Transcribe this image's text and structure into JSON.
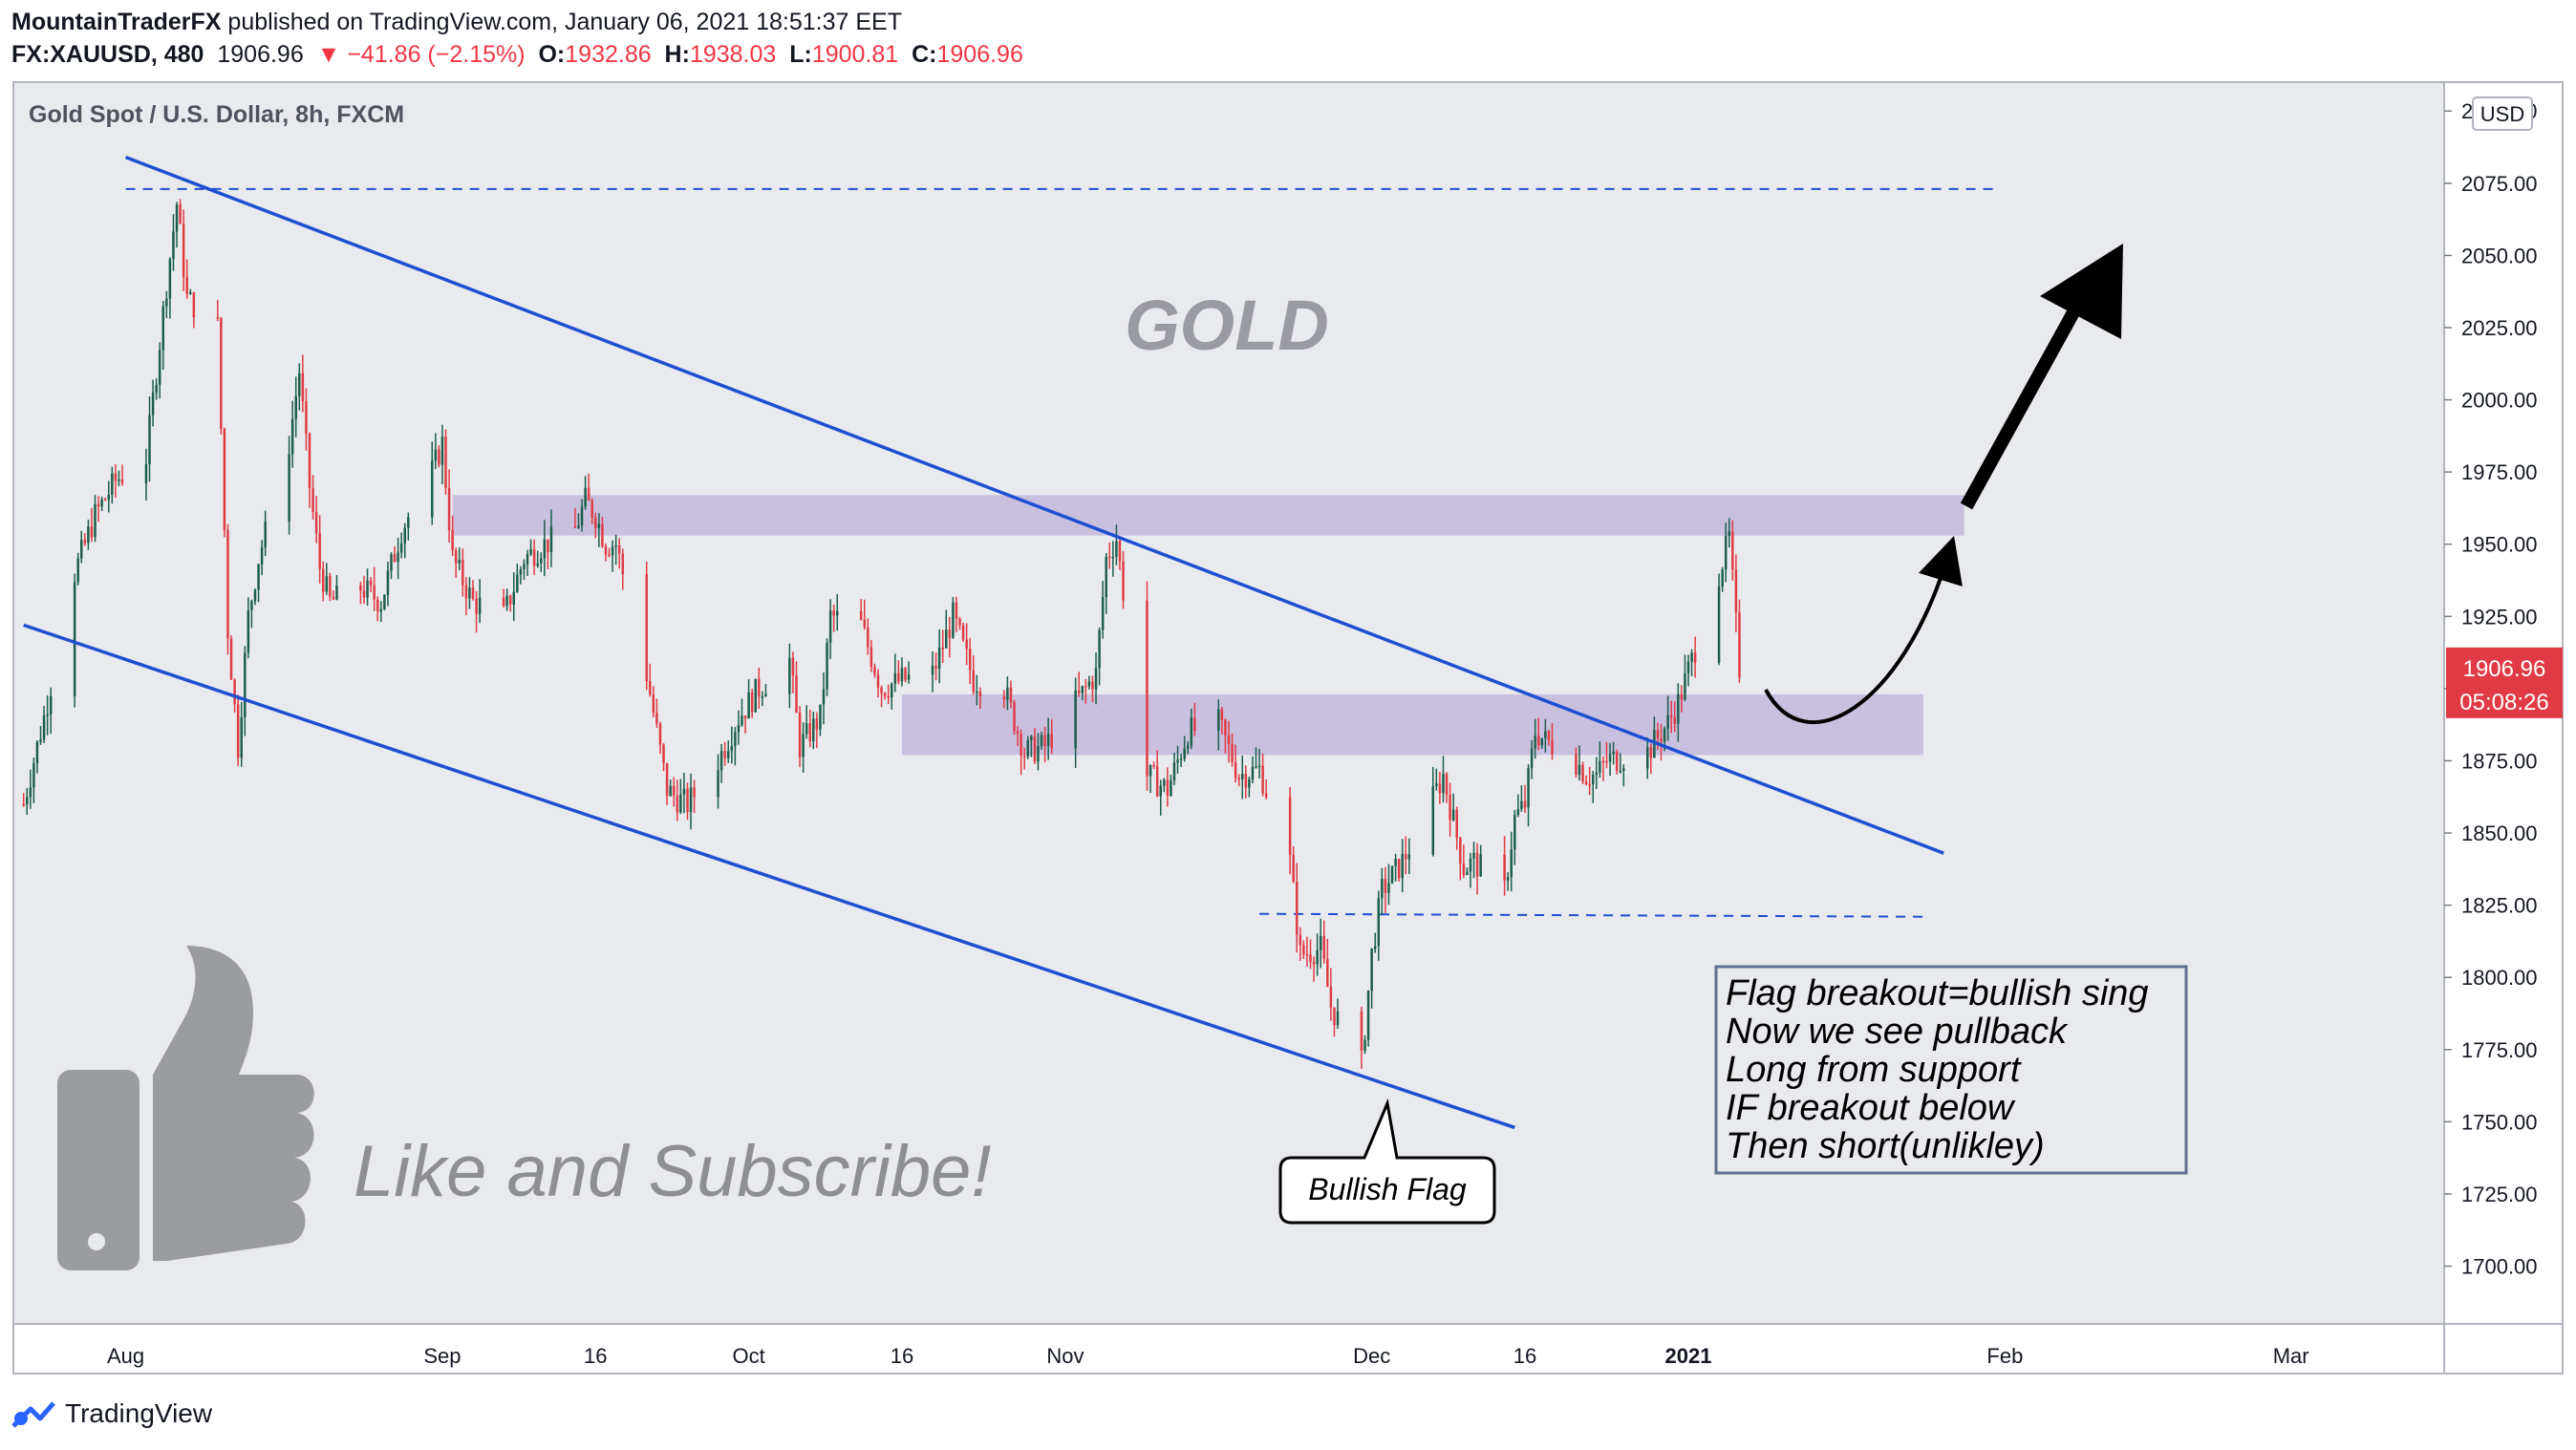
{
  "header": {
    "author": "MountainTraderFX",
    "published_text": "published on TradingView.com, January 06, 2021 18:51:37 EET"
  },
  "quote": {
    "symbol": "FX:XAUUSD, 480",
    "last": "1906.96",
    "change": "▼ −41.86 (−2.15%)",
    "o_label": "O:",
    "o": "1932.86",
    "h_label": "H:",
    "h": "1938.03",
    "l_label": "L:",
    "l": "1900.81",
    "c_label": "C:",
    "c": "1906.96"
  },
  "footer": {
    "brand": "TradingView"
  },
  "colors": {
    "up": "#1b5e4a",
    "down": "#e03b44",
    "channel": "#1f4fd1",
    "zone": "#b4a3d6",
    "background": "#e9eaee"
  },
  "chart_data": {
    "type": "candlestick",
    "title": "Gold Spot / U.S. Dollar, 8h, FXCM",
    "watermark": "GOLD",
    "currency": "USD",
    "ylim": [
      1680,
      2110
    ],
    "y_ticks": [
      "2100.00",
      "2075.00",
      "2050.00",
      "2025.00",
      "2000.00",
      "1975.00",
      "1950.00",
      "1925.00",
      "1900.00",
      "1875.00",
      "1850.00",
      "1825.00",
      "1800.00",
      "1775.00",
      "1750.00",
      "1725.00",
      "1700.00"
    ],
    "x_ticks": [
      {
        "label": "Aug",
        "date": "2020-08-01"
      },
      {
        "label": "Sep",
        "date": "2020-09-01"
      },
      {
        "label": "16",
        "date": "2020-09-16"
      },
      {
        "label": "Oct",
        "date": "2020-10-01"
      },
      {
        "label": "16",
        "date": "2020-10-16"
      },
      {
        "label": "Nov",
        "date": "2020-11-01"
      },
      {
        "label": "Dec",
        "date": "2020-12-01"
      },
      {
        "label": "16",
        "date": "2020-12-16"
      },
      {
        "label": "2021",
        "date": "2021-01-01"
      },
      {
        "label": "Feb",
        "date": "2021-02-01"
      },
      {
        "label": "Mar",
        "date": "2021-03-01"
      }
    ],
    "price_path": [
      [
        "2020-07-22",
        1860
      ],
      [
        "2020-07-24",
        1890
      ],
      [
        "2020-07-27",
        1940
      ],
      [
        "2020-07-29",
        1960
      ],
      [
        "2020-07-31",
        1972
      ],
      [
        "2020-08-03",
        1980
      ],
      [
        "2020-08-05",
        2040
      ],
      [
        "2020-08-06",
        2068
      ],
      [
        "2020-08-07",
        2035
      ],
      [
        "2020-08-10",
        2025
      ],
      [
        "2020-08-11",
        1920
      ],
      [
        "2020-08-12",
        1880
      ],
      [
        "2020-08-13",
        1925
      ],
      [
        "2020-08-14",
        1945
      ],
      [
        "2020-08-17",
        1985
      ],
      [
        "2020-08-18",
        2010
      ],
      [
        "2020-08-19",
        1970
      ],
      [
        "2020-08-20",
        1942
      ],
      [
        "2020-08-21",
        1930
      ],
      [
        "2020-08-24",
        1935
      ],
      [
        "2020-08-26",
        1930
      ],
      [
        "2020-08-28",
        1955
      ],
      [
        "2020-08-31",
        1975
      ],
      [
        "2020-09-01",
        1985
      ],
      [
        "2020-09-02",
        1945
      ],
      [
        "2020-09-04",
        1930
      ],
      [
        "2020-09-07",
        1925
      ],
      [
        "2020-09-09",
        1945
      ],
      [
        "2020-09-11",
        1950
      ],
      [
        "2020-09-14",
        1955
      ],
      [
        "2020-09-15",
        1965
      ],
      [
        "2020-09-16",
        1960
      ],
      [
        "2020-09-17",
        1950
      ],
      [
        "2020-09-18",
        1950
      ],
      [
        "2020-09-21",
        1905
      ],
      [
        "2020-09-23",
        1865
      ],
      [
        "2020-09-24",
        1862
      ],
      [
        "2020-09-25",
        1860
      ],
      [
        "2020-09-28",
        1875
      ],
      [
        "2020-09-30",
        1890
      ],
      [
        "2020-10-02",
        1900
      ],
      [
        "2020-10-05",
        1910
      ],
      [
        "2020-10-06",
        1880
      ],
      [
        "2020-10-08",
        1890
      ],
      [
        "2020-10-09",
        1925
      ],
      [
        "2020-10-12",
        1922
      ],
      [
        "2020-10-14",
        1900
      ],
      [
        "2020-10-16",
        1903
      ],
      [
        "2020-10-19",
        1905
      ],
      [
        "2020-10-21",
        1925
      ],
      [
        "2020-10-23",
        1903
      ],
      [
        "2020-10-26",
        1900
      ],
      [
        "2020-10-28",
        1878
      ],
      [
        "2020-10-30",
        1880
      ],
      [
        "2020-11-02",
        1895
      ],
      [
        "2020-11-04",
        1905
      ],
      [
        "2020-11-05",
        1945
      ],
      [
        "2020-11-06",
        1952
      ],
      [
        "2020-11-09",
        1870
      ],
      [
        "2020-11-11",
        1865
      ],
      [
        "2020-11-13",
        1885
      ],
      [
        "2020-11-16",
        1888
      ],
      [
        "2020-11-18",
        1870
      ],
      [
        "2020-11-20",
        1872
      ],
      [
        "2020-11-23",
        1840
      ],
      [
        "2020-11-24",
        1808
      ],
      [
        "2020-11-26",
        1810
      ],
      [
        "2020-11-27",
        1790
      ],
      [
        "2020-11-30",
        1770
      ],
      [
        "2020-12-01",
        1808
      ],
      [
        "2020-12-02",
        1830
      ],
      [
        "2020-12-04",
        1840
      ],
      [
        "2020-12-07",
        1862
      ],
      [
        "2020-12-08",
        1870
      ],
      [
        "2020-12-10",
        1838
      ],
      [
        "2020-12-11",
        1840
      ],
      [
        "2020-12-14",
        1830
      ],
      [
        "2020-12-15",
        1855
      ],
      [
        "2020-12-16",
        1860
      ],
      [
        "2020-12-17",
        1885
      ],
      [
        "2020-12-18",
        1882
      ],
      [
        "2020-12-21",
        1875
      ],
      [
        "2020-12-22",
        1870
      ],
      [
        "2020-12-23",
        1870
      ],
      [
        "2020-12-24",
        1875
      ],
      [
        "2020-12-28",
        1878
      ],
      [
        "2020-12-30",
        1888
      ],
      [
        "2020-12-31",
        1895
      ],
      [
        "2021-01-04",
        1940
      ],
      [
        "2021-01-05",
        1952
      ],
      [
        "2021-01-06",
        1906.96
      ]
    ],
    "last_price": "1906.96",
    "countdown": "05:08:26",
    "resistance_line": 2073,
    "support_line": 1822,
    "zones": [
      {
        "from": "2020-09-02",
        "to": "2021-01-28",
        "low": 1953,
        "high": 1967
      },
      {
        "from": "2020-10-16",
        "to": "2021-01-24",
        "low": 1877,
        "high": 1898
      }
    ],
    "channel": {
      "upper": [
        [
          "2020-08-01",
          2084
        ],
        [
          "2021-01-26",
          1843
        ]
      ],
      "lower": [
        [
          "2020-07-22",
          1922
        ],
        [
          "2020-12-15",
          1748
        ]
      ]
    },
    "annotations": {
      "bullish_flag": "Bullish Flag",
      "like_subscribe": "Like and Subscribe!",
      "note_lines": [
        "Flag breakout=bullish sing",
        "Now we see pullback",
        "Long from support",
        "IF breakout below",
        "Then short(unlikley)"
      ]
    }
  }
}
